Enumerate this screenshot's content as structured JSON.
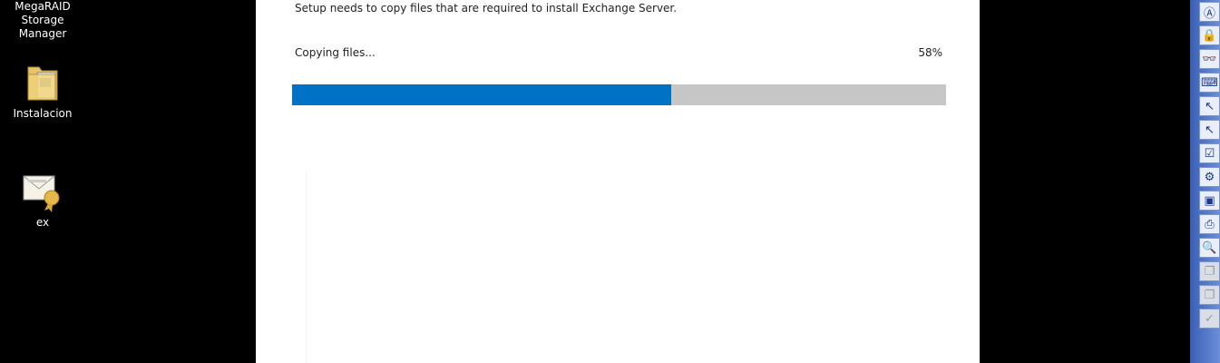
{
  "desktop": {
    "icons": [
      {
        "label_line1": "MegaRAID",
        "label_line2": "Storage Manager"
      },
      {
        "label": "Instalacion"
      },
      {
        "label": "ex"
      }
    ]
  },
  "setup": {
    "message": "Setup needs to copy files that are required to install Exchange Server.",
    "progress_label": "Copying files...",
    "progress_percent_text": "58%",
    "progress_value": 0.58,
    "accent_color": "#0072c6",
    "track_color": "#c6c6c6"
  },
  "toolbar": {
    "icons": [
      "character-map-icon",
      "lock-keyboard-icon",
      "glasses-icon",
      "keyboard-highlight-icon",
      "pointer-box-icon",
      "pointer-select-icon",
      "checkbox-grid-icon",
      "gear-wrench-icon",
      "monitor-icon",
      "printer-icon",
      "magnifier-icon",
      "copy-icon",
      "copy-icon-2",
      "monitor-check-icon"
    ]
  }
}
